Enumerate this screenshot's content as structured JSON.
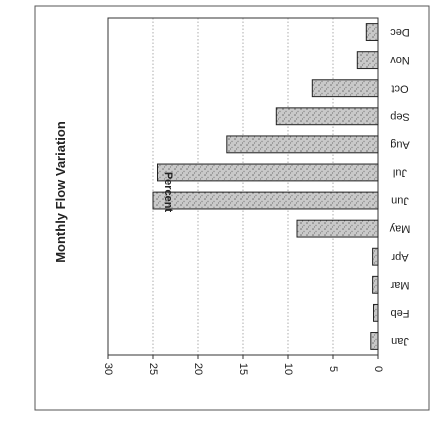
{
  "chart_data": {
    "type": "bar",
    "title": "Monthly Flow Variation",
    "xlabel": "",
    "ylabel": "Percent",
    "categories": [
      "Jan",
      "Feb",
      "Mar",
      "Apr",
      "May",
      "Jun",
      "Jul",
      "Aug",
      "Sep",
      "Oct",
      "Nov",
      "Dec"
    ],
    "values": [
      0.8,
      0.5,
      0.6,
      0.6,
      9.0,
      25.0,
      24.5,
      16.8,
      11.3,
      7.3,
      2.3,
      1.3
    ],
    "ylim": [
      0,
      30
    ],
    "yticks": [
      "0",
      "5",
      "10",
      "15",
      "20",
      "25",
      "30"
    ],
    "grid": true,
    "orientation": "rotated-90-clockwise",
    "bar_color": "#c9c9c9"
  }
}
